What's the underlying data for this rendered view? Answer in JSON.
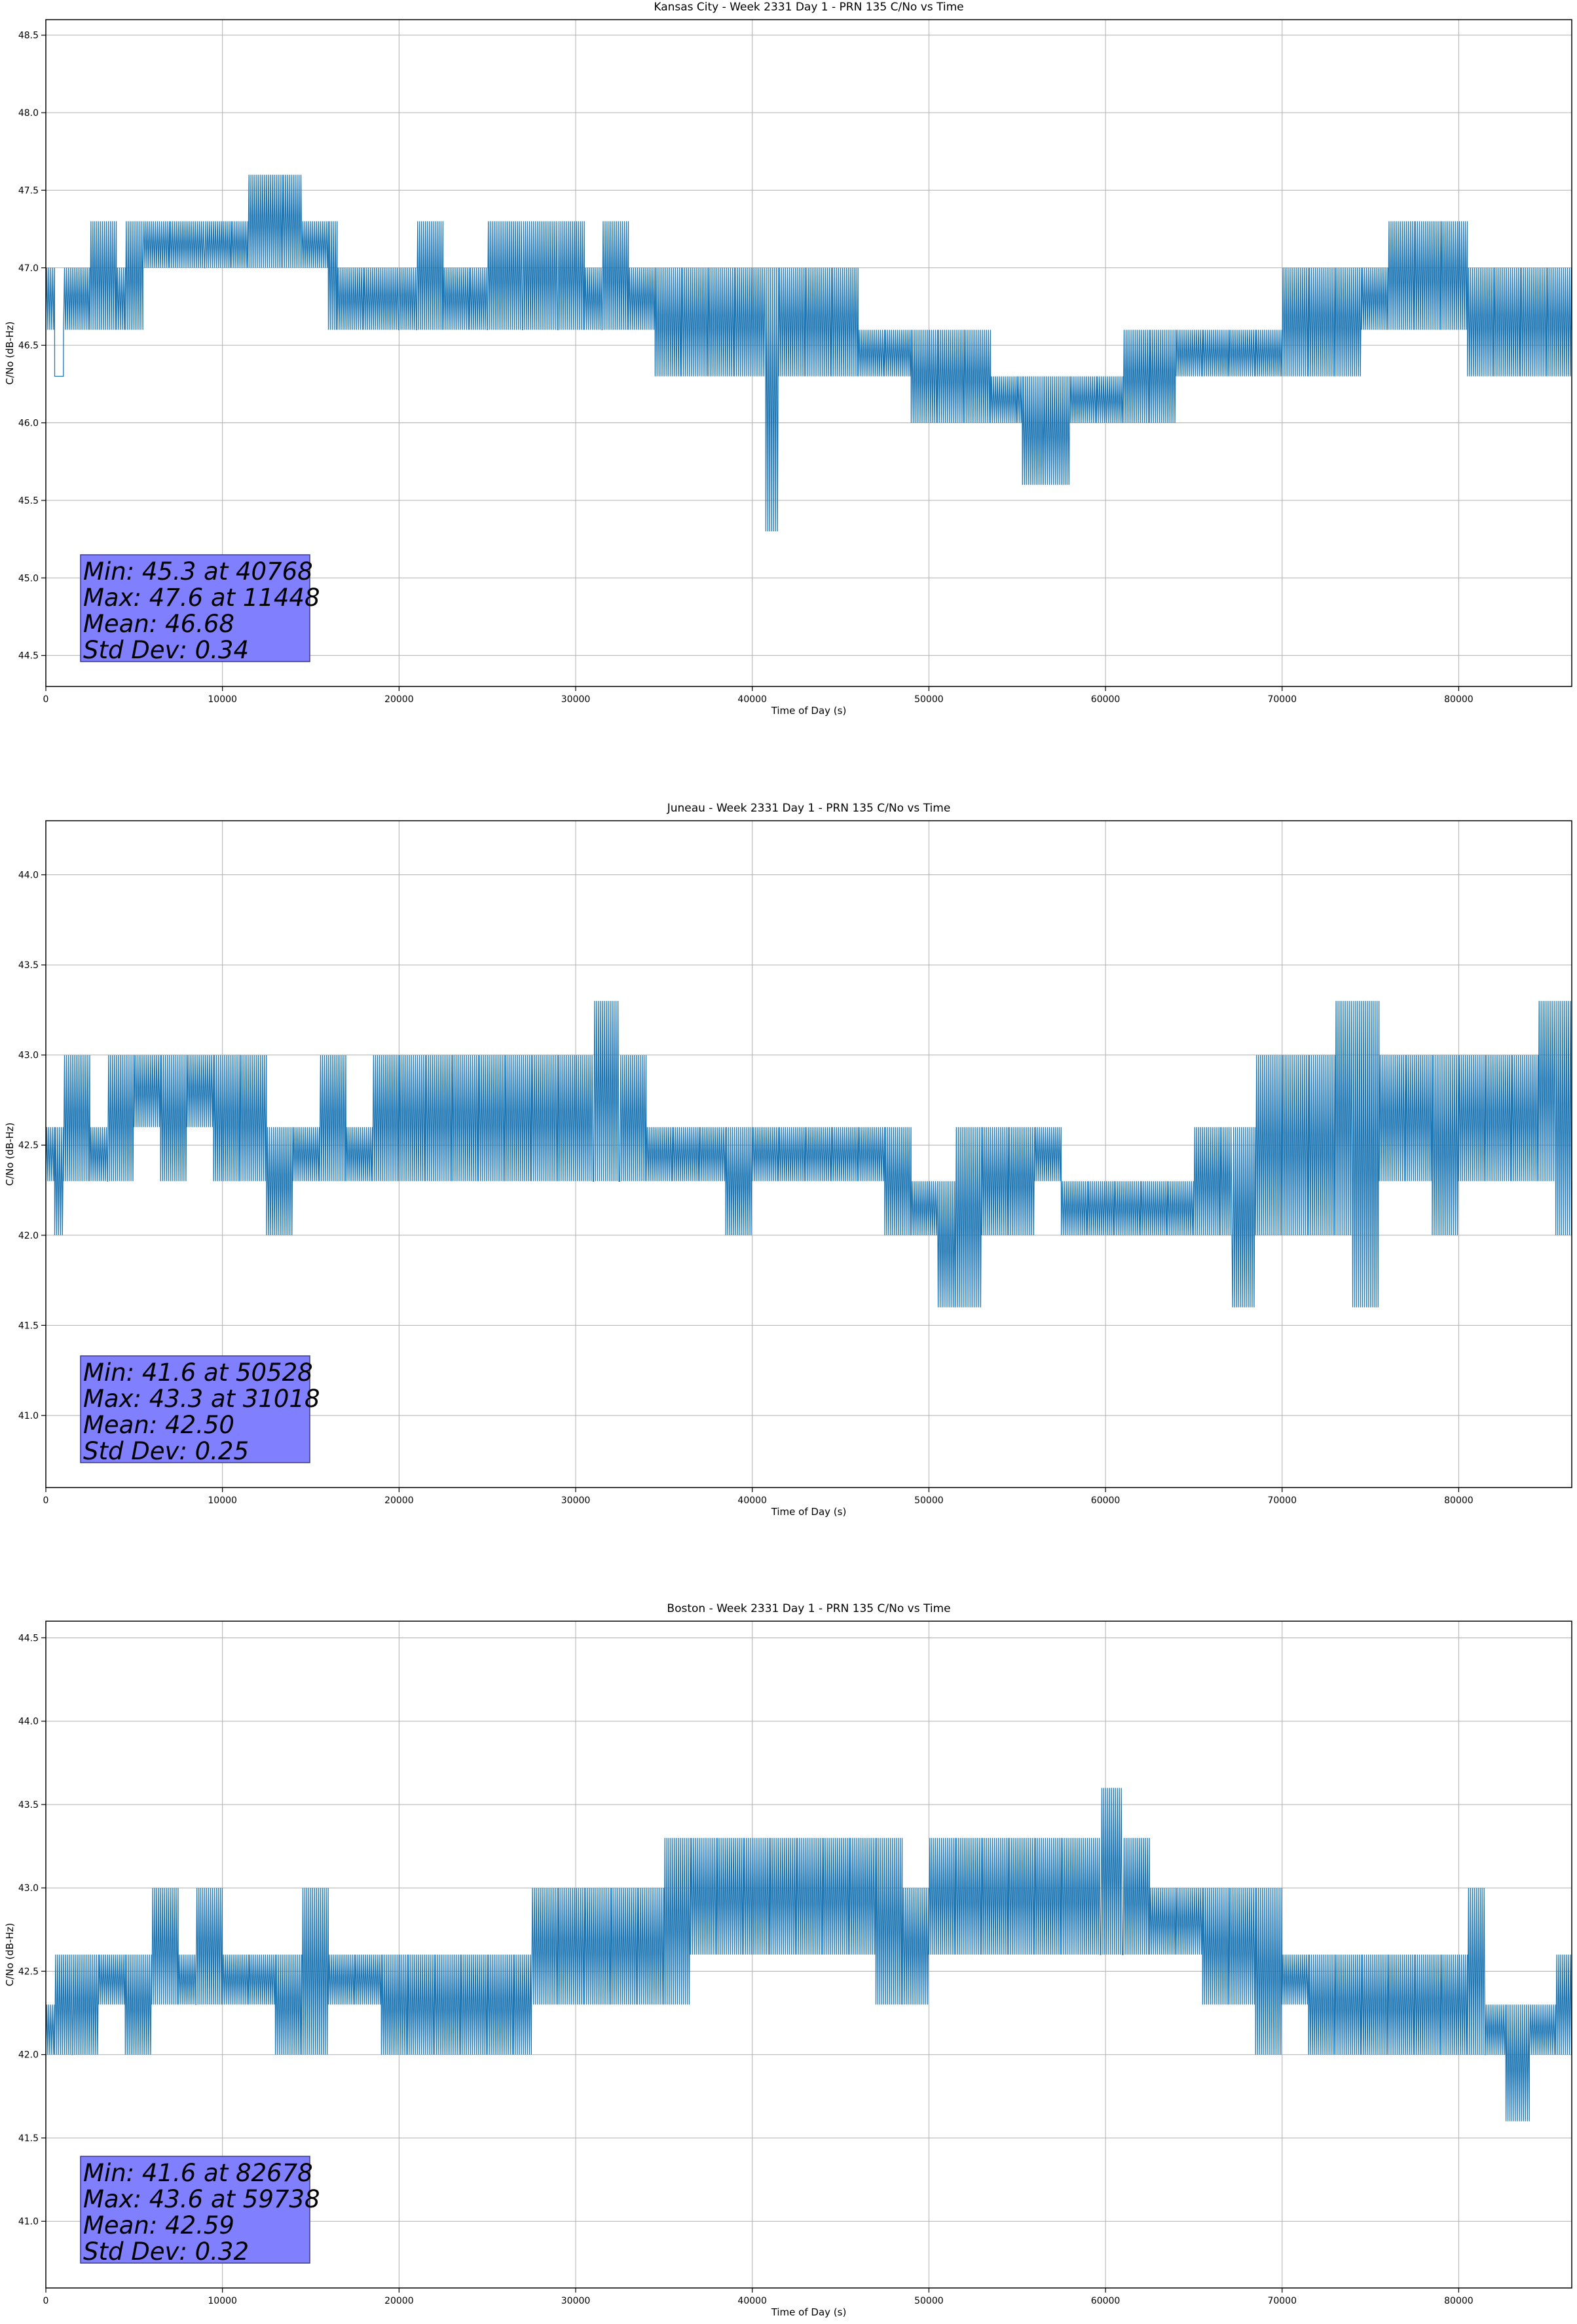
{
  "chart_data": [
    {
      "type": "line",
      "title": "Kansas City - Week 2331 Day 1 - PRN 135 C/No vs Time",
      "xlabel": "Time of Day (s)",
      "ylabel": "C/No (dB-Hz)",
      "xlim": [
        0,
        86400
      ],
      "ylim": [
        44.3,
        48.6
      ],
      "xticks": [
        0,
        10000,
        20000,
        30000,
        40000,
        50000,
        60000,
        70000,
        80000
      ],
      "yticks": [
        44.5,
        45.0,
        45.5,
        46.0,
        46.5,
        47.0,
        47.5,
        48.0,
        48.5
      ],
      "grid": true,
      "line_color": "#1f77b4",
      "series": [
        {
          "values": [
            [
              0,
              46.6,
              47.0
            ],
            [
              500,
              46.3,
              46.3
            ],
            [
              1000,
              46.6,
              47.0
            ],
            [
              2500,
              46.6,
              47.3
            ],
            [
              4000,
              46.6,
              47.0
            ],
            [
              4500,
              46.6,
              47.3
            ],
            [
              5500,
              47.0,
              47.3
            ],
            [
              7000,
              47.0,
              47.3
            ],
            [
              9000,
              47.0,
              47.3
            ],
            [
              10500,
              47.0,
              47.3
            ],
            [
              11448,
              47.0,
              47.6
            ],
            [
              12000,
              47.0,
              47.6
            ],
            [
              13400,
              47.0,
              47.6
            ],
            [
              14500,
              47.0,
              47.3
            ],
            [
              16000,
              46.6,
              47.3
            ],
            [
              16500,
              46.6,
              47.0
            ],
            [
              18000,
              46.6,
              47.0
            ],
            [
              20000,
              46.6,
              47.0
            ],
            [
              21000,
              46.6,
              47.3
            ],
            [
              22500,
              46.6,
              47.0
            ],
            [
              24000,
              46.6,
              47.0
            ],
            [
              25000,
              46.6,
              47.3
            ],
            [
              27000,
              46.6,
              47.3
            ],
            [
              29000,
              46.6,
              47.3
            ],
            [
              30500,
              46.6,
              47.0
            ],
            [
              31500,
              46.6,
              47.3
            ],
            [
              33000,
              46.6,
              47.0
            ],
            [
              34500,
              46.3,
              47.0
            ],
            [
              36000,
              46.3,
              47.0
            ],
            [
              37500,
              46.3,
              47.0
            ],
            [
              39000,
              46.3,
              47.0
            ],
            [
              40768,
              45.3,
              47.0
            ],
            [
              41500,
              46.3,
              47.0
            ],
            [
              43000,
              46.3,
              47.0
            ],
            [
              44500,
              46.3,
              47.0
            ],
            [
              46000,
              46.3,
              46.6
            ],
            [
              47500,
              46.3,
              46.6
            ],
            [
              49000,
              46.0,
              46.6
            ],
            [
              50500,
              46.0,
              46.6
            ],
            [
              52000,
              46.0,
              46.6
            ],
            [
              53500,
              46.0,
              46.3
            ],
            [
              55000,
              46.0,
              46.3
            ],
            [
              55300,
              45.6,
              46.3
            ],
            [
              56500,
              45.6,
              46.3
            ],
            [
              58000,
              46.0,
              46.3
            ],
            [
              59500,
              46.0,
              46.3
            ],
            [
              61000,
              46.0,
              46.6
            ],
            [
              62500,
              46.0,
              46.6
            ],
            [
              64000,
              46.3,
              46.6
            ],
            [
              65500,
              46.3,
              46.6
            ],
            [
              67000,
              46.3,
              46.6
            ],
            [
              68500,
              46.3,
              46.6
            ],
            [
              70000,
              46.3,
              47.0
            ],
            [
              71500,
              46.3,
              47.0
            ],
            [
              73000,
              46.3,
              47.0
            ],
            [
              74500,
              46.6,
              47.0
            ],
            [
              76000,
              46.6,
              47.3
            ],
            [
              77500,
              46.6,
              47.3
            ],
            [
              79000,
              46.6,
              47.3
            ],
            [
              80500,
              46.3,
              47.0
            ],
            [
              82000,
              46.3,
              47.0
            ],
            [
              83500,
              46.3,
              47.0
            ],
            [
              85000,
              46.3,
              47.0
            ],
            [
              86400,
              46.6,
              47.0
            ]
          ]
        }
      ],
      "stats": {
        "line1": "Min: 45.3 at 40768",
        "line2": "Max: 47.6 at 11448",
        "line3": "Mean: 46.68",
        "line4": "Std Dev: 0.34"
      },
      "stats_box_color": "#8080ff"
    },
    {
      "type": "line",
      "title": "Juneau - Week 2331 Day 1 - PRN 135 C/No vs Time",
      "xlabel": "Time of Day (s)",
      "ylabel": "C/No (dB-Hz)",
      "xlim": [
        0,
        86400
      ],
      "ylim": [
        40.6,
        44.3
      ],
      "xticks": [
        0,
        10000,
        20000,
        30000,
        40000,
        50000,
        60000,
        70000,
        80000
      ],
      "yticks": [
        41.0,
        41.5,
        42.0,
        42.5,
        43.0,
        43.5,
        44.0
      ],
      "grid": true,
      "line_color": "#1f77b4",
      "series": [
        {
          "values": [
            [
              0,
              42.3,
              42.6
            ],
            [
              500,
              42.0,
              42.6
            ],
            [
              1000,
              42.3,
              43.0
            ],
            [
              2500,
              42.3,
              42.6
            ],
            [
              3500,
              42.3,
              43.0
            ],
            [
              5000,
              42.6,
              43.0
            ],
            [
              6500,
              42.3,
              43.0
            ],
            [
              8000,
              42.6,
              43.0
            ],
            [
              9500,
              42.3,
              43.0
            ],
            [
              11000,
              42.3,
              43.0
            ],
            [
              12500,
              42.0,
              42.6
            ],
            [
              14000,
              42.3,
              42.6
            ],
            [
              15500,
              42.3,
              43.0
            ],
            [
              17000,
              42.3,
              42.6
            ],
            [
              18500,
              42.3,
              43.0
            ],
            [
              20000,
              42.3,
              43.0
            ],
            [
              21500,
              42.3,
              43.0
            ],
            [
              23000,
              42.3,
              43.0
            ],
            [
              24500,
              42.3,
              43.0
            ],
            [
              26000,
              42.3,
              43.0
            ],
            [
              27500,
              42.3,
              43.0
            ],
            [
              29000,
              42.3,
              43.0
            ],
            [
              31018,
              42.3,
              43.3
            ],
            [
              32500,
              42.3,
              43.0
            ],
            [
              34000,
              42.3,
              42.6
            ],
            [
              35500,
              42.3,
              42.6
            ],
            [
              37000,
              42.3,
              42.6
            ],
            [
              38500,
              42.0,
              42.6
            ],
            [
              40000,
              42.3,
              42.6
            ],
            [
              41500,
              42.3,
              42.6
            ],
            [
              43000,
              42.3,
              42.6
            ],
            [
              44500,
              42.3,
              42.6
            ],
            [
              46000,
              42.3,
              42.6
            ],
            [
              47500,
              42.0,
              42.6
            ],
            [
              49000,
              42.0,
              42.3
            ],
            [
              50528,
              41.6,
              42.3
            ],
            [
              51500,
              41.6,
              42.6
            ],
            [
              53000,
              42.0,
              42.6
            ],
            [
              54500,
              42.0,
              42.6
            ],
            [
              56000,
              42.3,
              42.6
            ],
            [
              57500,
              42.0,
              42.3
            ],
            [
              59000,
              42.0,
              42.3
            ],
            [
              60500,
              42.0,
              42.3
            ],
            [
              62000,
              42.0,
              42.3
            ],
            [
              63500,
              42.0,
              42.3
            ],
            [
              65000,
              42.0,
              42.6
            ],
            [
              66500,
              42.0,
              42.6
            ],
            [
              67200,
              41.6,
              42.6
            ],
            [
              68500,
              42.0,
              43.0
            ],
            [
              70000,
              42.0,
              43.0
            ],
            [
              71500,
              42.0,
              43.0
            ],
            [
              73000,
              42.0,
              43.3
            ],
            [
              74000,
              41.6,
              43.3
            ],
            [
              75500,
              42.3,
              43.0
            ],
            [
              77000,
              42.3,
              43.0
            ],
            [
              78500,
              42.0,
              43.0
            ],
            [
              80000,
              42.3,
              43.0
            ],
            [
              81500,
              42.3,
              43.0
            ],
            [
              83000,
              42.3,
              43.0
            ],
            [
              84500,
              42.3,
              43.3
            ],
            [
              85500,
              42.0,
              43.3
            ],
            [
              86400,
              42.3,
              43.0
            ]
          ]
        }
      ],
      "stats": {
        "line1": "Min: 41.6 at 50528",
        "line2": "Max: 43.3 at 31018",
        "line3": "Mean: 42.50",
        "line4": "Std Dev: 0.25"
      },
      "stats_box_color": "#8080ff"
    },
    {
      "type": "line",
      "title": "Boston - Week 2331 Day 1 - PRN 135 C/No vs Time",
      "xlabel": "Time of Day (s)",
      "ylabel": "C/No (dB-Hz)",
      "xlim": [
        0,
        86400
      ],
      "ylim": [
        40.6,
        44.6
      ],
      "xticks": [
        0,
        10000,
        20000,
        30000,
        40000,
        50000,
        60000,
        70000,
        80000
      ],
      "yticks": [
        41.0,
        41.5,
        42.0,
        42.5,
        43.0,
        43.5,
        44.0,
        44.5
      ],
      "grid": true,
      "line_color": "#1f77b4",
      "series": [
        {
          "values": [
            [
              0,
              42.0,
              42.3
            ],
            [
              500,
              42.0,
              42.6
            ],
            [
              1500,
              42.0,
              42.6
            ],
            [
              3000,
              42.3,
              42.6
            ],
            [
              4500,
              42.0,
              42.6
            ],
            [
              6000,
              42.3,
              43.0
            ],
            [
              7500,
              42.3,
              42.6
            ],
            [
              8500,
              42.3,
              43.0
            ],
            [
              10000,
              42.3,
              42.6
            ],
            [
              11500,
              42.3,
              42.6
            ],
            [
              13000,
              42.0,
              42.6
            ],
            [
              14500,
              42.0,
              43.0
            ],
            [
              16000,
              42.3,
              42.6
            ],
            [
              17500,
              42.3,
              42.6
            ],
            [
              19000,
              42.0,
              42.6
            ],
            [
              20500,
              42.0,
              42.6
            ],
            [
              22000,
              42.0,
              42.6
            ],
            [
              23500,
              42.0,
              42.6
            ],
            [
              25000,
              42.0,
              42.6
            ],
            [
              26500,
              42.0,
              42.6
            ],
            [
              27500,
              42.3,
              43.0
            ],
            [
              29000,
              42.3,
              43.0
            ],
            [
              30500,
              42.3,
              43.0
            ],
            [
              32000,
              42.3,
              43.0
            ],
            [
              33500,
              42.3,
              43.0
            ],
            [
              35000,
              42.3,
              43.3
            ],
            [
              36500,
              42.6,
              43.3
            ],
            [
              38000,
              42.6,
              43.3
            ],
            [
              39500,
              42.6,
              43.3
            ],
            [
              41000,
              42.6,
              43.3
            ],
            [
              42500,
              42.6,
              43.3
            ],
            [
              44000,
              42.6,
              43.3
            ],
            [
              45500,
              42.6,
              43.3
            ],
            [
              47000,
              42.3,
              43.3
            ],
            [
              48500,
              42.3,
              43.0
            ],
            [
              50000,
              42.6,
              43.3
            ],
            [
              51500,
              42.6,
              43.3
            ],
            [
              53000,
              42.6,
              43.3
            ],
            [
              54500,
              42.6,
              43.3
            ],
            [
              56000,
              42.6,
              43.3
            ],
            [
              57500,
              42.6,
              43.3
            ],
            [
              59738,
              42.6,
              43.6
            ],
            [
              61000,
              42.6,
              43.3
            ],
            [
              62500,
              42.6,
              43.0
            ],
            [
              64000,
              42.6,
              43.0
            ],
            [
              65500,
              42.3,
              43.0
            ],
            [
              67000,
              42.3,
              43.0
            ],
            [
              68500,
              42.0,
              43.0
            ],
            [
              70000,
              42.3,
              42.6
            ],
            [
              71500,
              42.0,
              42.6
            ],
            [
              73000,
              42.0,
              42.6
            ],
            [
              74500,
              42.0,
              42.6
            ],
            [
              76000,
              42.0,
              42.6
            ],
            [
              77500,
              42.0,
              42.6
            ],
            [
              79000,
              42.0,
              42.6
            ],
            [
              80500,
              42.0,
              43.0
            ],
            [
              81500,
              42.0,
              42.3
            ],
            [
              82678,
              41.6,
              42.3
            ],
            [
              84000,
              42.0,
              42.3
            ],
            [
              85500,
              42.0,
              42.6
            ],
            [
              86400,
              42.0,
              42.3
            ]
          ]
        }
      ],
      "stats": {
        "line1": "Min: 41.6 at 82678",
        "line2": "Max: 43.6 at 59738",
        "line3": "Mean: 42.59",
        "line4": "Std Dev: 0.32"
      },
      "stats_box_color": "#8080ff"
    }
  ]
}
